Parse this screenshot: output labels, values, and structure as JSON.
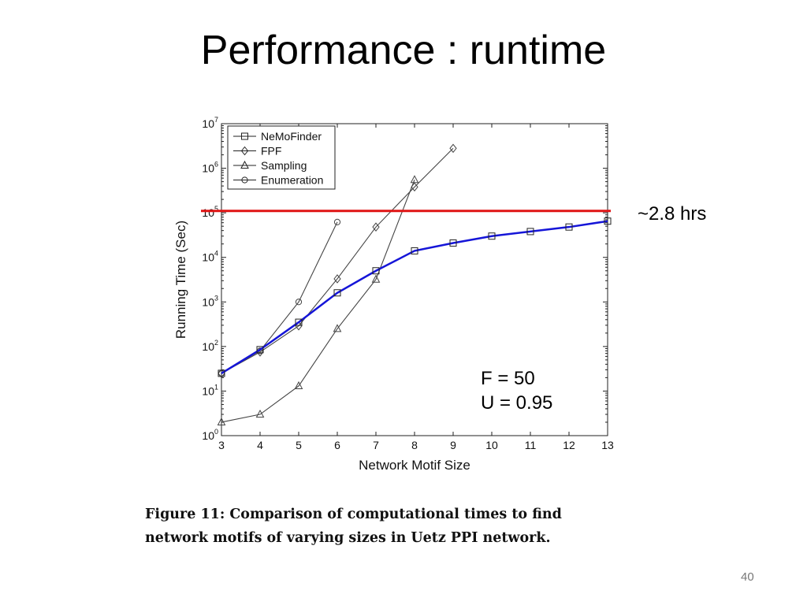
{
  "slide": {
    "title": "Performance : runtime",
    "caption_line1": "Figure 11:  Comparison of computational times to find",
    "caption_line2": "network motifs of varying sizes in Uetz PPI network.",
    "page_number": "40"
  },
  "chart_data": {
    "type": "line",
    "title": "",
    "xlabel": "Network Motif Size",
    "ylabel": "Running Time (Sec)",
    "x_ticks": [
      3,
      4,
      5,
      6,
      7,
      8,
      9,
      10,
      11,
      12,
      13
    ],
    "xlim": [
      3,
      13
    ],
    "y_scale": "log",
    "ylim": [
      1,
      10000000
    ],
    "y_tick_exponents": [
      0,
      1,
      2,
      3,
      4,
      5,
      6,
      7
    ],
    "legend_placement": "top-left",
    "grid": false,
    "series": [
      {
        "name": "NeMoFinder",
        "marker": "square",
        "x": [
          3,
          4,
          5,
          6,
          7,
          8,
          9,
          10,
          11,
          12,
          13
        ],
        "y": [
          25,
          85,
          350,
          1600,
          5000,
          14000,
          21000,
          30000,
          38000,
          48000,
          65000
        ]
      },
      {
        "name": "FPF",
        "marker": "diamond",
        "x": [
          3,
          4,
          5,
          6,
          7,
          8,
          9
        ],
        "y": [
          25,
          75,
          290,
          3300,
          48000,
          380000,
          2800000
        ]
      },
      {
        "name": "Sampling",
        "marker": "triangle",
        "x": [
          3,
          4,
          5,
          6,
          7,
          8
        ],
        "y": [
          2,
          3,
          13,
          250,
          3200,
          550000
        ]
      },
      {
        "name": "Enumeration",
        "marker": "circle",
        "x": [
          3,
          4,
          5,
          6
        ],
        "y": [
          25,
          80,
          1000,
          62000
        ]
      }
    ],
    "highlight_series": "NeMoFinder",
    "highlight_color": "#1515d8",
    "series_color": "#444444",
    "threshold_line": {
      "y": 110000,
      "color": "#e01414",
      "label": "~2.8 hrs"
    },
    "annotations": [
      "F = 50",
      "U = 0.95"
    ]
  }
}
